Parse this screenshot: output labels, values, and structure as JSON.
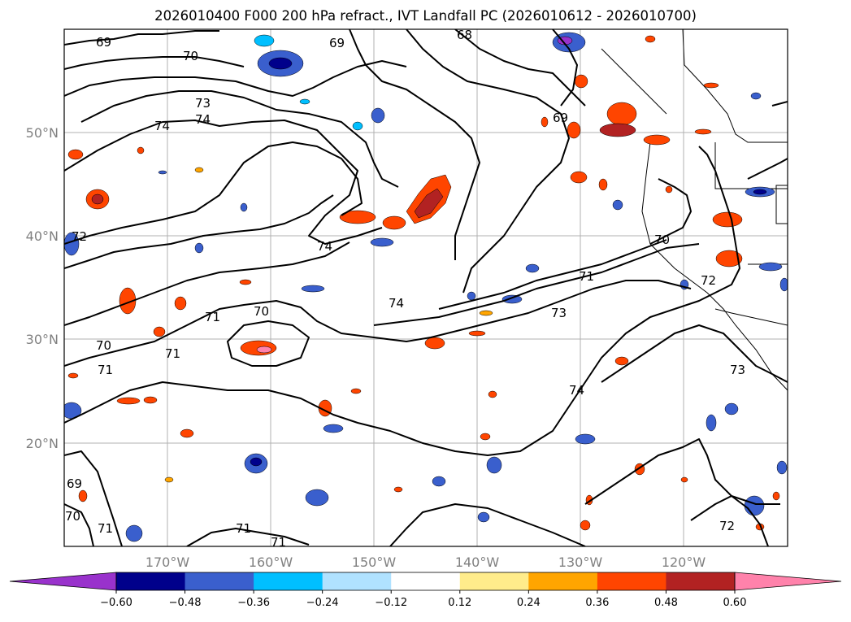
{
  "title": "2026010400 F000 200 hPa refract., IVT Landfall PC (2026010612 - 2026010700)",
  "lat_labels": [
    "50°N",
    "40°N",
    "30°N",
    "20°N"
  ],
  "lon_labels": [
    "170°W",
    "160°W",
    "150°W",
    "140°W",
    "130°W",
    "120°W"
  ],
  "contour_labels": [
    "69",
    "70",
    "73",
    "74",
    "69",
    "68",
    "69",
    "74",
    "74",
    "72",
    "71",
    "70",
    "71",
    "70",
    "71",
    "74",
    "73",
    "71",
    "70",
    "74",
    "72",
    "73",
    "69",
    "70",
    "71",
    "71",
    "71",
    "72"
  ],
  "colorbar": {
    "ticks": [
      "−0.60",
      "−0.48",
      "−0.36",
      "−0.24",
      "−0.12",
      "0.12",
      "0.24",
      "0.36",
      "0.48",
      "0.60"
    ],
    "colors": [
      "#9932cc",
      "#00008b",
      "#3a5fcd",
      "#00bfff",
      "#b0e2ff",
      "#ffffff",
      "#ffec8b",
      "#ffa500",
      "#ff4500",
      "#b22222",
      "#ff82ab"
    ]
  }
}
